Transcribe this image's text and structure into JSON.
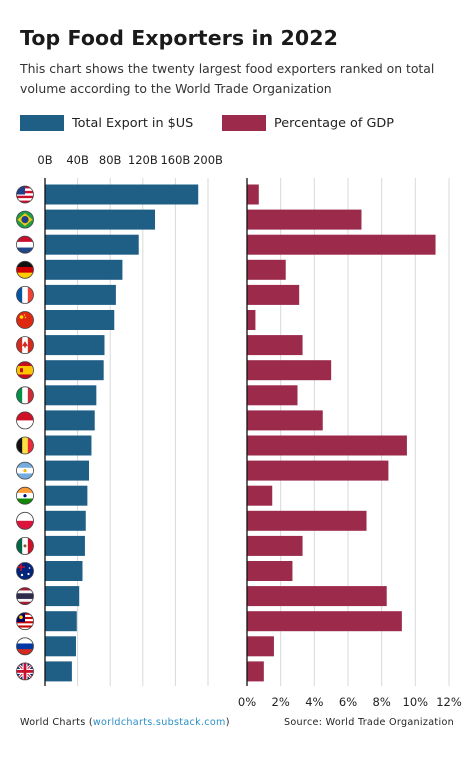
{
  "title": "Top Food Exporters in 2022",
  "subtitle": "This chart shows the twenty largest food exporters ranked on total volume according to the World Trade Organization",
  "footer": {
    "brand_prefix": "World Charts (",
    "brand_link": "worldcharts.substack.com",
    "brand_suffix": ")",
    "source": "Source: World Trade Organization"
  },
  "colors": {
    "export": "#1f5f86",
    "gdp": "#9b2a4b",
    "grid": "#d9d9d9",
    "axis": "#111111"
  },
  "chart_data": [
    {
      "type": "bar",
      "orientation": "horizontal",
      "categories": [
        "United States",
        "Brazil",
        "Netherlands",
        "Germany",
        "France",
        "China",
        "Canada",
        "Spain",
        "Italy",
        "Indonesia",
        "Belgium",
        "Argentina",
        "India",
        "Poland",
        "Mexico",
        "Australia",
        "Thailand",
        "Malaysia",
        "Russia",
        "United Kingdom"
      ],
      "icons": [
        "flag-us-icon",
        "flag-br-icon",
        "flag-nl-icon",
        "flag-de-icon",
        "flag-fr-icon",
        "flag-cn-icon",
        "flag-ca-icon",
        "flag-es-icon",
        "flag-it-icon",
        "flag-id-icon",
        "flag-be-icon",
        "flag-ar-icon",
        "flag-in-icon",
        "flag-pl-icon",
        "flag-mx-icon",
        "flag-au-icon",
        "flag-th-icon",
        "flag-my-icon",
        "flag-ru-icon",
        "flag-gb-icon"
      ],
      "series": [
        {
          "name": "Total Export in $US",
          "values": [
            188,
            135,
            115,
            95,
            87,
            85,
            73,
            72,
            63,
            61,
            57,
            54,
            52,
            50,
            49,
            46,
            42,
            39,
            38,
            33
          ]
        }
      ],
      "xticks": [
        "0B",
        "40B",
        "80B",
        "120B",
        "160B",
        "200B"
      ],
      "xlim": [
        0,
        200
      ],
      "axis_position": "top",
      "grid": true
    },
    {
      "type": "bar",
      "orientation": "horizontal",
      "categories": [
        "United States",
        "Brazil",
        "Netherlands",
        "Germany",
        "France",
        "China",
        "Canada",
        "Spain",
        "Italy",
        "Indonesia",
        "Belgium",
        "Argentina",
        "India",
        "Poland",
        "Mexico",
        "Australia",
        "Thailand",
        "Malaysia",
        "Russia",
        "United Kingdom"
      ],
      "series": [
        {
          "name": "Percentage of GDP",
          "values": [
            0.7,
            6.8,
            11.2,
            2.3,
            3.1,
            0.5,
            3.3,
            5.0,
            3.0,
            4.5,
            9.5,
            8.4,
            1.5,
            7.1,
            3.3,
            2.7,
            8.3,
            9.2,
            1.6,
            1.0
          ]
        }
      ],
      "xticks": [
        "0%",
        "2%",
        "4%",
        "6%",
        "8%",
        "10%",
        "12%"
      ],
      "xlim": [
        0,
        12
      ],
      "axis_position": "bottom",
      "grid": true
    }
  ]
}
